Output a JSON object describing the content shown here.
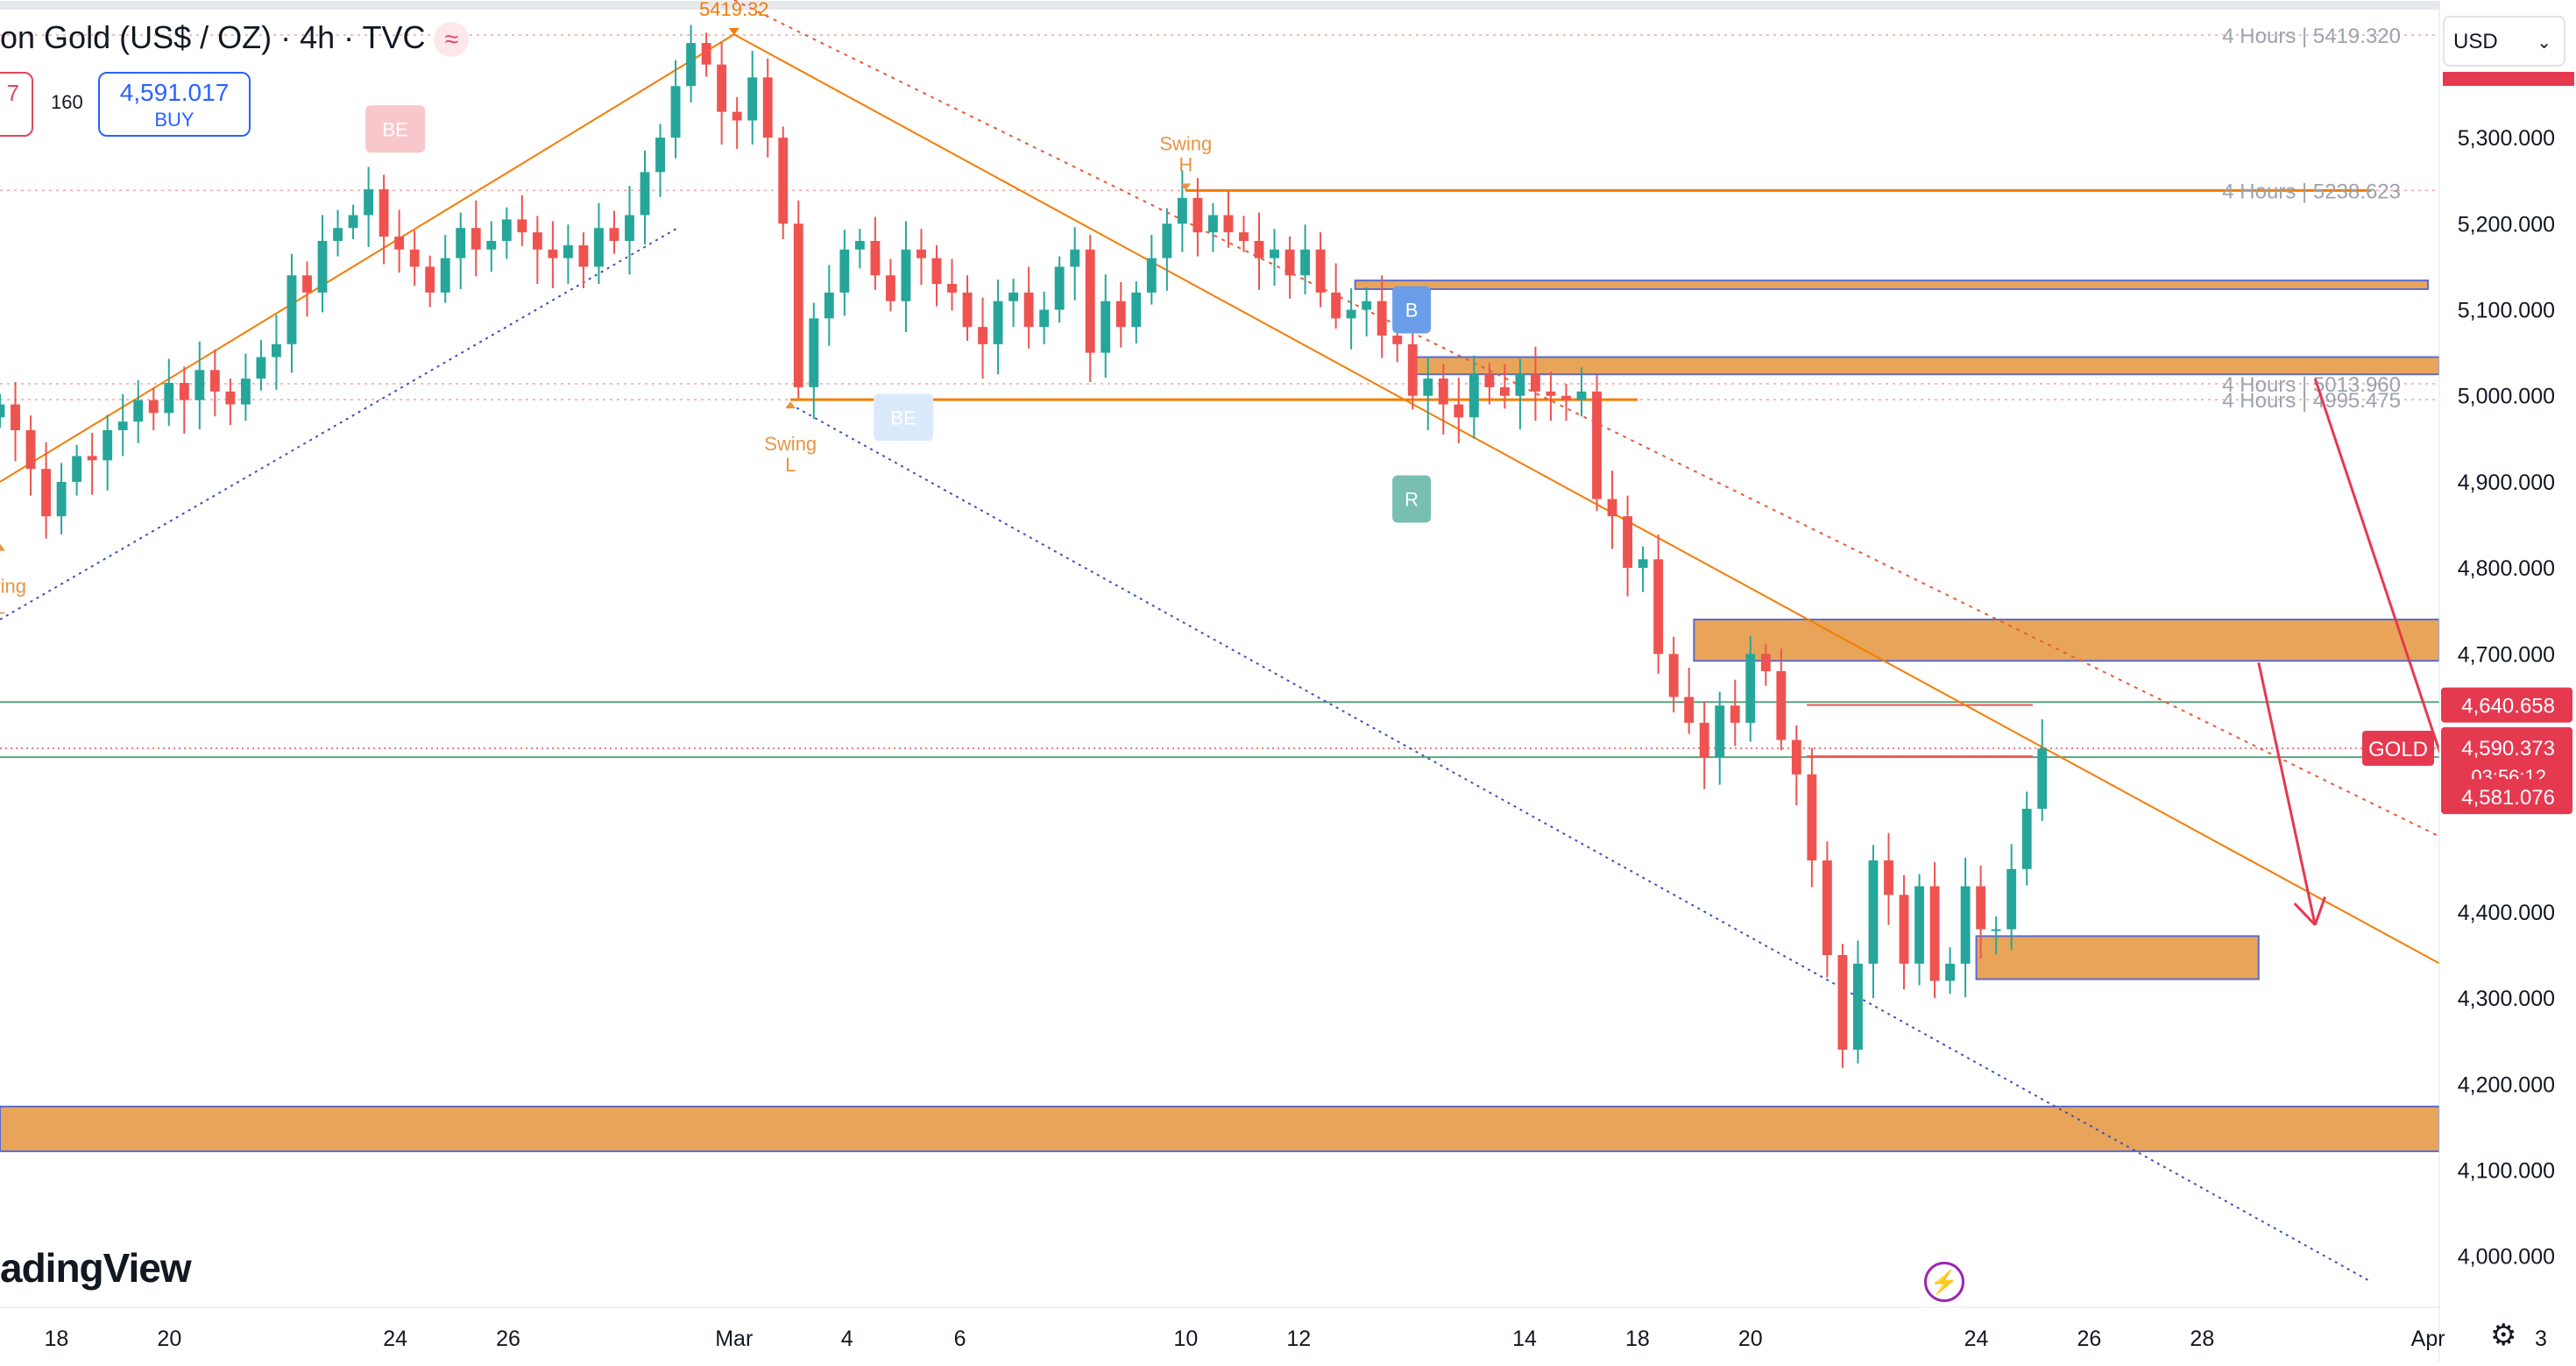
{
  "header": {
    "title": "on Gold (US$ / OZ) · 4h · TVC",
    "sell_price": "7",
    "spread": "160",
    "buy_price": "4,591.017",
    "buy_label": "BUY",
    "currency": "USD",
    "watermark": "adingView"
  },
  "colors": {
    "up": "#26a69a",
    "down": "#ef5350",
    "zone_fill": "#e8a559",
    "zone_border": "#5b6bd1",
    "trend": "#f57c00",
    "channel_dotted": "#3f51b5",
    "red_arrow": "#e53950",
    "price_label_bg": "#e53950"
  },
  "chart_data": {
    "type": "candlestick",
    "symbol": "GOLD",
    "timeframe": "4h",
    "ylim": [
      3960,
      5460
    ],
    "y_ticks": [
      "5,300.000",
      "5,200.000",
      "5,100.000",
      "5,000.000",
      "4,900.000",
      "4,800.000",
      "4,700.000",
      "4,400.000",
      "4,300.000",
      "4,200.000",
      "4,100.000",
      "4,000.000"
    ],
    "y_tick_values": [
      5300,
      5200,
      5100,
      5000,
      4900,
      4800,
      4700,
      4400,
      4300,
      4200,
      4100,
      4000
    ],
    "x_ticks": [
      "18",
      "20",
      "24",
      "26",
      "Mar",
      "4",
      "6",
      "10",
      "12",
      "14",
      "18",
      "20",
      "24",
      "26",
      "28",
      "Apr",
      "3"
    ],
    "x_tick_dates": [
      "2026-02-18",
      "2026-02-20",
      "2026-02-24",
      "2026-02-26",
      "2026-03-02",
      "2026-03-04",
      "2026-03-06",
      "2026-03-10",
      "2026-03-12",
      "2026-03-16",
      "2026-03-18",
      "2026-03-20",
      "2026-03-24",
      "2026-03-26",
      "2026-03-28",
      "2026-04-01",
      "2026-04-03"
    ],
    "x_range": [
      "2026-02-17",
      "2026-04-03"
    ],
    "candles_close": [
      4990,
      4960,
      4915,
      4860,
      4900,
      4930,
      4925,
      4960,
      4970,
      4995,
      4980,
      5015,
      4995,
      5030,
      5005,
      4990,
      5020,
      5045,
      5060,
      5140,
      5120,
      5180,
      5195,
      5210,
      5240,
      5185,
      5170,
      5150,
      5120,
      5160,
      5195,
      5170,
      5180,
      5205,
      5190,
      5170,
      5160,
      5175,
      5150,
      5195,
      5180,
      5210,
      5260,
      5300,
      5360,
      5410,
      5385,
      5330,
      5320,
      5370,
      5300,
      5200,
      5010,
      5090,
      5120,
      5170,
      5180,
      5140,
      5110,
      5170,
      5160,
      5130,
      5120,
      5080,
      5060,
      5110,
      5120,
      5080,
      5100,
      5150,
      5170,
      5050,
      5110,
      5080,
      5120,
      5160,
      5200,
      5230,
      5190,
      5210,
      5190,
      5180,
      5160,
      5170,
      5140,
      5170,
      5120,
      5090,
      5100,
      5110,
      5070,
      5060,
      5000,
      5020,
      4990,
      4975,
      5025,
      5010,
      5000,
      5025,
      5005,
      5000,
      4995,
      5005,
      4880,
      4860,
      4800,
      4810,
      4700,
      4650,
      4620,
      4580,
      4640,
      4620,
      4700,
      4680,
      4600,
      4560,
      4460,
      4350,
      4240,
      4340,
      4460,
      4420,
      4340,
      4430,
      4320,
      4340,
      4430,
      4380,
      4380,
      4450,
      4520,
      4590
    ],
    "current_price": 4590.373,
    "countdown": "03:56:12",
    "price_labels": [
      {
        "text": "4,640.658",
        "value": 4640.658
      },
      {
        "text": "4,590.373",
        "value": 4590.373
      },
      {
        "text": "4,581.076",
        "value": 4581.076
      }
    ],
    "level_labels": [
      {
        "text": "4 Hours | 5419.320",
        "value": 5419.32
      },
      {
        "text": "4 Hours | 5238.623",
        "value": 5238.623
      },
      {
        "text": "4 Hours | 5013.960",
        "value": 5013.96
      },
      {
        "text": "4 Hours | 4995.475",
        "value": 4995.475
      }
    ],
    "zones": [
      {
        "from": 5124,
        "to": 5134,
        "x_start": "2026-03-13",
        "x_end": "2026-04-01"
      },
      {
        "from": 5025,
        "to": 5045,
        "x_start": "2026-03-14",
        "x_end": "2026-04-03"
      },
      {
        "from": 4692,
        "to": 4740,
        "x_start": "2026-03-19",
        "x_end": "2026-04-03"
      },
      {
        "from": 4322,
        "to": 4372,
        "x_start": "2026-03-24",
        "x_end": "2026-03-29"
      },
      {
        "from": 4122,
        "to": 4174,
        "x_start": "2026-02-17",
        "x_end": "2026-04-03"
      }
    ],
    "annotations": [
      {
        "text": "H",
        "sub": "5419.32",
        "date": "2026-03-02",
        "value": 5419.32,
        "color": "#f57c00"
      },
      {
        "text": "Swing",
        "sub": "H",
        "date": "2026-03-10",
        "value": 5238.6,
        "color": "#e89444"
      },
      {
        "text": "Swing",
        "sub": "L",
        "date": "2026-03-03",
        "value": 4995.5,
        "color": "#e89444"
      },
      {
        "text": "Swing",
        "sub": "L",
        "date": "2026-02-17",
        "value": 4830,
        "color": "#e89444"
      },
      {
        "text": "BE",
        "date": "2026-02-24",
        "value": 5310,
        "color": "#f8c7cc",
        "label_color": "#ffffff"
      },
      {
        "text": "BE",
        "date": "2026-03-05",
        "value": 4975,
        "color": "#dbeafb",
        "label_color": "#ffffff"
      },
      {
        "text": "B",
        "date": "2026-03-14",
        "value": 5100,
        "color": "#6a9ee8",
        "label_color": "#ffffff"
      },
      {
        "text": "R",
        "date": "2026-03-14",
        "value": 4880,
        "color": "#79bfb1",
        "label_color": "#ffffff"
      }
    ]
  }
}
